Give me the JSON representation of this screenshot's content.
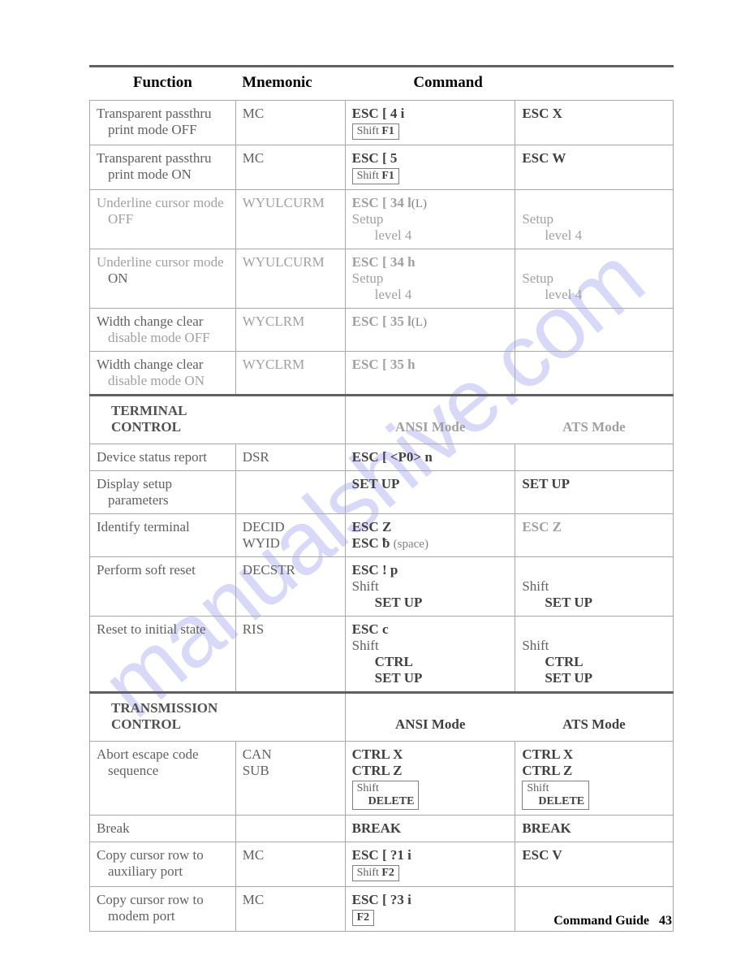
{
  "watermark": "manualshive.com",
  "header": {
    "col1": "Function",
    "col2": "Mnemonic",
    "col3": "Command"
  },
  "rows_a": [
    {
      "func": "Transparent passthru",
      "func2": "print mode OFF",
      "mnem": "MC",
      "cmd1_bold": "ESC [ 4 i",
      "cmd1_key_a": "Shift",
      "cmd1_key_b": "F1",
      "cmd2_bold": "ESC X"
    },
    {
      "func": "Transparent passthru",
      "func2": "print mode ON",
      "mnem": "MC",
      "cmd1_bold": "ESC [ 5",
      "cmd1_key_a": "Shift",
      "cmd1_key_b": "F1",
      "cmd2_bold": "ESC W"
    },
    {
      "func": "Underline cursor mode",
      "func2": "OFF",
      "mnem": "WYULCURM",
      "cmd1_bold": "ESC [ 34 l",
      "cmd1_note": "(L)",
      "cmd1_line2": "Setup",
      "cmd1_line3": "level 4",
      "cmd2_line2": "Setup",
      "cmd2_line3": "level 4"
    },
    {
      "func": "Underline cursor mode",
      "func2": "ON",
      "mnem": "WYULCURM",
      "cmd1_bold": "ESC [ 34 h",
      "cmd1_line2": "Setup",
      "cmd1_line3": "level 4",
      "cmd2_line2": "Setup",
      "cmd2_line3": "level 4"
    },
    {
      "func": "Width change clear",
      "func2": "disable mode OFF",
      "mnem": "WYCLRM",
      "cmd1_bold": "ESC [ 35 l",
      "cmd1_note": "(L)"
    },
    {
      "func": "Width change clear",
      "func2": "disable mode ON",
      "mnem": "WYCLRM",
      "cmd1_bold": "ESC [ 35 h"
    }
  ],
  "section_b": {
    "title_line1": "TERMINAL",
    "title_line2": "CONTROL",
    "sub1": "ANSI Mode",
    "sub2": "ATS Mode"
  },
  "rows_b": [
    {
      "func": "Device status report",
      "mnem": "DSR",
      "cmd1_bold": "ESC [ <P0> n"
    },
    {
      "func": "Display setup",
      "func2": "parameters",
      "cmd1_bold": "SET UP",
      "cmd2_bold": "SET UP"
    },
    {
      "func": "Identify terminal",
      "mnem": "DECID",
      "mnem2": "WYID",
      "cmd1_bold": "ESC Z",
      "cmd1b_bold": "ESC ƀ",
      "cmd1b_note": "(space)",
      "cmd2_bold": "ESC Z"
    },
    {
      "func": "Perform soft reset",
      "mnem": "DECSTR",
      "cmd1_bold": "ESC ! p",
      "cmd1_line2": "Shift",
      "cmd1_line3_bold": "SET UP",
      "cmd2_line2": "Shift",
      "cmd2_line3_bold": "SET UP"
    },
    {
      "func": "Reset to initial state",
      "mnem": "RIS",
      "cmd1_bold": "ESC c",
      "cmd1_line2": "Shift",
      "cmd1_line3_bold": "CTRL",
      "cmd1_line4_bold": "SET UP",
      "cmd2_line2": "Shift",
      "cmd2_line3_bold": "CTRL",
      "cmd2_line4_bold": "SET UP"
    }
  ],
  "section_c": {
    "title_line1": "TRANSMISSION",
    "title_line2": "CONTROL",
    "sub1": "ANSI Mode",
    "sub2": "ATS Mode"
  },
  "rows_c": [
    {
      "func": "Abort escape code",
      "func2": "sequence",
      "mnem": "CAN",
      "mnem2": "SUB",
      "cmd1_bold": "CTRL X",
      "cmd1b_bold": "CTRL Z",
      "cmd1_key_a": "Shift",
      "cmd1_key_b_bold": "DELETE",
      "cmd2_bold": "CTRL X",
      "cmd2b_bold": "CTRL Z",
      "cmd2_key_a": "Shift",
      "cmd2_key_b_bold": "DELETE"
    },
    {
      "func": "Break",
      "cmd1_bold": "BREAK",
      "cmd2_bold": "BREAK"
    },
    {
      "func": "Copy cursor row to",
      "func2": "auxiliary port",
      "mnem": "MC",
      "cmd1_bold": "ESC [ ?1 i",
      "cmd1_key_a": "Shift",
      "cmd1_key_b": "F2",
      "cmd2_bold": "ESC V"
    },
    {
      "func": "Copy cursor row to",
      "func2": "modem port",
      "mnem": "MC",
      "cmd1_bold": "ESC [ ?3 i",
      "cmd1_key_single": "F2"
    }
  ],
  "footer": {
    "label": "Command Guide",
    "page": "43"
  }
}
